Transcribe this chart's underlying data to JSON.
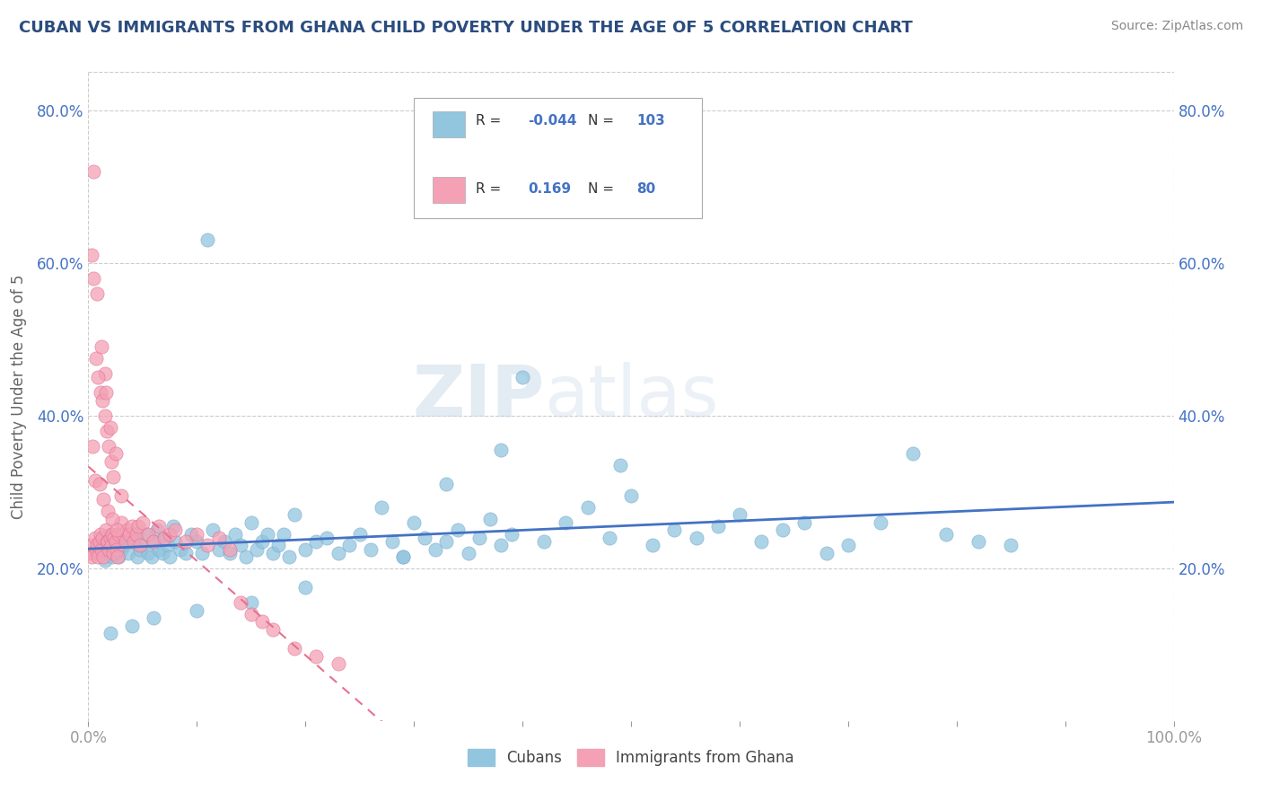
{
  "title": "CUBAN VS IMMIGRANTS FROM GHANA CHILD POVERTY UNDER THE AGE OF 5 CORRELATION CHART",
  "source": "Source: ZipAtlas.com",
  "ylabel": "Child Poverty Under the Age of 5",
  "xlim": [
    0,
    1.0
  ],
  "ylim": [
    0,
    0.85
  ],
  "yticks": [
    0.2,
    0.4,
    0.6,
    0.8
  ],
  "yticklabels": [
    "20.0%",
    "40.0%",
    "60.0%",
    "80.0%"
  ],
  "legend_R_cubans": "-0.044",
  "legend_N_cubans": "103",
  "legend_R_ghana": "0.169",
  "legend_N_ghana": "80",
  "color_cubans": "#92C5DE",
  "color_ghana": "#F4A0B5",
  "trendline_color_cubans": "#4472C4",
  "trendline_color_ghana": "#E87090",
  "background_color": "#ffffff",
  "watermark_zip": "ZIP",
  "watermark_atlas": "atlas",
  "cubans_x": [
    0.008,
    0.01,
    0.012,
    0.015,
    0.018,
    0.02,
    0.022,
    0.025,
    0.028,
    0.03,
    0.033,
    0.035,
    0.037,
    0.04,
    0.042,
    0.045,
    0.048,
    0.05,
    0.053,
    0.055,
    0.058,
    0.06,
    0.063,
    0.065,
    0.068,
    0.07,
    0.073,
    0.075,
    0.078,
    0.08,
    0.085,
    0.09,
    0.095,
    0.1,
    0.105,
    0.11,
    0.115,
    0.12,
    0.125,
    0.13,
    0.135,
    0.14,
    0.145,
    0.15,
    0.155,
    0.16,
    0.165,
    0.17,
    0.175,
    0.18,
    0.185,
    0.19,
    0.2,
    0.21,
    0.22,
    0.23,
    0.24,
    0.25,
    0.26,
    0.27,
    0.28,
    0.29,
    0.3,
    0.31,
    0.32,
    0.33,
    0.34,
    0.35,
    0.36,
    0.37,
    0.38,
    0.39,
    0.4,
    0.42,
    0.44,
    0.46,
    0.48,
    0.5,
    0.52,
    0.54,
    0.56,
    0.58,
    0.6,
    0.62,
    0.64,
    0.66,
    0.68,
    0.7,
    0.73,
    0.76,
    0.79,
    0.82,
    0.85,
    0.38,
    0.49,
    0.33,
    0.29,
    0.2,
    0.15,
    0.1,
    0.06,
    0.04,
    0.02
  ],
  "cubans_y": [
    0.22,
    0.225,
    0.235,
    0.21,
    0.23,
    0.245,
    0.215,
    0.22,
    0.215,
    0.225,
    0.23,
    0.24,
    0.22,
    0.235,
    0.245,
    0.215,
    0.225,
    0.23,
    0.245,
    0.22,
    0.215,
    0.235,
    0.25,
    0.225,
    0.22,
    0.24,
    0.23,
    0.215,
    0.255,
    0.235,
    0.225,
    0.22,
    0.245,
    0.235,
    0.22,
    0.63,
    0.25,
    0.225,
    0.235,
    0.22,
    0.245,
    0.23,
    0.215,
    0.26,
    0.225,
    0.235,
    0.245,
    0.22,
    0.23,
    0.245,
    0.215,
    0.27,
    0.225,
    0.235,
    0.24,
    0.22,
    0.23,
    0.245,
    0.225,
    0.28,
    0.235,
    0.215,
    0.26,
    0.24,
    0.225,
    0.235,
    0.25,
    0.22,
    0.24,
    0.265,
    0.23,
    0.245,
    0.45,
    0.235,
    0.26,
    0.28,
    0.24,
    0.295,
    0.23,
    0.25,
    0.24,
    0.255,
    0.27,
    0.235,
    0.25,
    0.26,
    0.22,
    0.23,
    0.26,
    0.35,
    0.245,
    0.235,
    0.23,
    0.355,
    0.335,
    0.31,
    0.215,
    0.175,
    0.155,
    0.145,
    0.135,
    0.125,
    0.115
  ],
  "ghana_x": [
    0.002,
    0.003,
    0.004,
    0.005,
    0.006,
    0.007,
    0.008,
    0.009,
    0.01,
    0.011,
    0.012,
    0.013,
    0.014,
    0.015,
    0.016,
    0.017,
    0.018,
    0.019,
    0.02,
    0.021,
    0.022,
    0.023,
    0.024,
    0.025,
    0.026,
    0.027,
    0.028,
    0.03,
    0.032,
    0.034,
    0.036,
    0.038,
    0.04,
    0.042,
    0.044,
    0.046,
    0.048,
    0.05,
    0.055,
    0.06,
    0.065,
    0.07,
    0.075,
    0.08,
    0.09,
    0.1,
    0.11,
    0.12,
    0.13,
    0.14,
    0.15,
    0.16,
    0.17,
    0.19,
    0.21,
    0.23,
    0.005,
    0.007,
    0.009,
    0.011,
    0.013,
    0.015,
    0.017,
    0.019,
    0.021,
    0.023,
    0.003,
    0.008,
    0.012,
    0.016,
    0.02,
    0.025,
    0.03,
    0.004,
    0.006,
    0.01,
    0.014,
    0.018,
    0.022,
    0.026
  ],
  "ghana_y": [
    0.22,
    0.215,
    0.23,
    0.72,
    0.24,
    0.225,
    0.23,
    0.215,
    0.235,
    0.245,
    0.225,
    0.24,
    0.215,
    0.455,
    0.25,
    0.235,
    0.235,
    0.225,
    0.24,
    0.23,
    0.245,
    0.22,
    0.24,
    0.235,
    0.225,
    0.215,
    0.245,
    0.26,
    0.245,
    0.235,
    0.25,
    0.245,
    0.255,
    0.235,
    0.245,
    0.255,
    0.23,
    0.26,
    0.245,
    0.235,
    0.255,
    0.24,
    0.245,
    0.25,
    0.235,
    0.245,
    0.23,
    0.24,
    0.225,
    0.155,
    0.14,
    0.13,
    0.12,
    0.095,
    0.085,
    0.075,
    0.58,
    0.475,
    0.45,
    0.43,
    0.42,
    0.4,
    0.38,
    0.36,
    0.34,
    0.32,
    0.61,
    0.56,
    0.49,
    0.43,
    0.385,
    0.35,
    0.295,
    0.36,
    0.315,
    0.31,
    0.29,
    0.275,
    0.265,
    0.25
  ]
}
